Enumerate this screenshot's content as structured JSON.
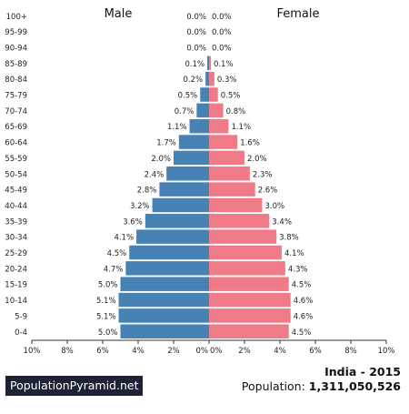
{
  "chart_data": {
    "type": "bar",
    "orientation": "horizontal-pyramid",
    "categories": [
      "100+",
      "95-99",
      "90-94",
      "85-89",
      "80-84",
      "75-79",
      "70-74",
      "65-69",
      "60-64",
      "55-59",
      "50-54",
      "45-49",
      "40-44",
      "35-39",
      "30-34",
      "25-29",
      "20-24",
      "15-19",
      "10-14",
      "5-9",
      "0-4"
    ],
    "series": [
      {
        "name": "Male",
        "color": "#4682b4",
        "values": [
          0.0,
          0.0,
          0.0,
          0.1,
          0.2,
          0.5,
          0.7,
          1.1,
          1.7,
          2.0,
          2.4,
          2.8,
          3.2,
          3.6,
          4.1,
          4.5,
          4.7,
          5.0,
          5.1,
          5.1,
          5.0
        ],
        "labels": [
          "0.0%",
          "0.0%",
          "0.0%",
          "0.1%",
          "0.2%",
          "0.5%",
          "0.7%",
          "1.1%",
          "1.7%",
          "2.0%",
          "2.4%",
          "2.8%",
          "3.2%",
          "3.6%",
          "4.1%",
          "4.5%",
          "4.7%",
          "5.0%",
          "5.1%",
          "5.1%",
          "5.0%"
        ]
      },
      {
        "name": "Female",
        "color": "#ef7b89",
        "values": [
          0.0,
          0.0,
          0.0,
          0.1,
          0.3,
          0.5,
          0.8,
          1.1,
          1.6,
          2.0,
          2.3,
          2.6,
          3.0,
          3.4,
          3.8,
          4.1,
          4.3,
          4.5,
          4.6,
          4.6,
          4.5
        ],
        "labels": [
          "0.0%",
          "0.0%",
          "0.0%",
          "0.1%",
          "0.3%",
          "0.5%",
          "0.8%",
          "1.1%",
          "1.6%",
          "2.0%",
          "2.3%",
          "2.6%",
          "3.0%",
          "3.4%",
          "3.8%",
          "4.1%",
          "4.3%",
          "4.5%",
          "4.6%",
          "4.6%",
          "4.5%"
        ]
      }
    ],
    "xlim": [
      0,
      10
    ],
    "x_ticks": [
      "10%",
      "8%",
      "6%",
      "4%",
      "2%",
      "0%",
      "0%",
      "2%",
      "4%",
      "6%",
      "8%",
      "10%"
    ],
    "grid": false,
    "legend": "top"
  },
  "footer": {
    "site": "PopulationPyramid.net",
    "country_year": "India - 2015",
    "population_label": "Population:",
    "population_value": "1,311,050,526"
  }
}
